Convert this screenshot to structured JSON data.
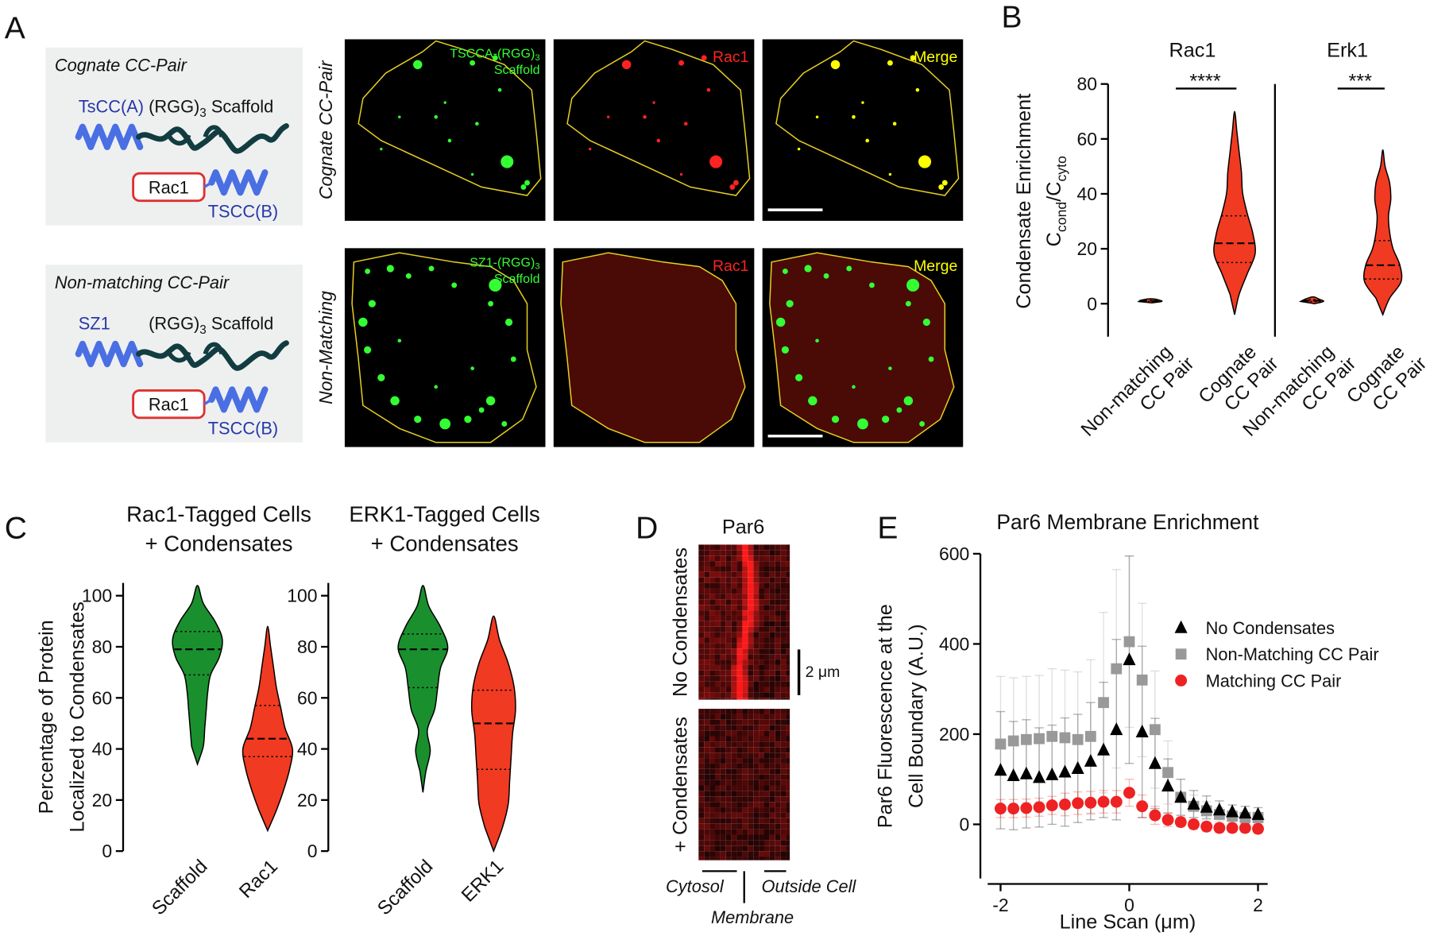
{
  "panel_labels": [
    "A",
    "B",
    "C",
    "D",
    "E"
  ],
  "panel_a": {
    "rows": [
      {
        "box_title": "Cognate CC-Pair",
        "coil": "TsCC(A)",
        "scaffold": [
          "(RGG)",
          "3",
          " Scaffold"
        ],
        "cargo": "Rac1",
        "cargo_coil": "TSCC(B)",
        "row_label": "Cognate CC-Pair",
        "channels": [
          {
            "label": [
              "TSCCA-(RGG)",
              "3"
            ],
            "label2": "Scaffold",
            "color": "#33ff33"
          },
          {
            "label": [
              "Rac1"
            ],
            "color": "#ff2222"
          },
          {
            "label": [
              "Merge"
            ],
            "color": "#ffff00"
          }
        ]
      },
      {
        "box_title": "Non-matching CC-Pair",
        "coil": "SZ1",
        "scaffold": [
          "(RGG)",
          "3",
          " Scaffold"
        ],
        "cargo": "Rac1",
        "cargo_coil": "TSCC(B)",
        "row_label": "Non-Matching",
        "channels": [
          {
            "label": [
              "SZ1-(RGG)",
              "3"
            ],
            "label2": "Scaffold",
            "color": "#33ff33"
          },
          {
            "label": [
              "Rac1"
            ],
            "color": "#ff2222"
          },
          {
            "label": [
              "Merge"
            ],
            "color": "#ffff00"
          }
        ]
      }
    ]
  },
  "panel_d": {
    "title": "Par6",
    "rows": [
      "No Condensates",
      "+ Condensates"
    ],
    "scale_bar": "2 μm",
    "left": "Cytosol",
    "right": "Outside Cell",
    "center": "Membrane"
  },
  "chart_data": [
    {
      "type": "violin",
      "title": [
        "Rac1"
      ],
      "ylabel": [
        "Condensate Enrichment"
      ],
      "ylabel_formula": [
        "C",
        "cond",
        "/C",
        "cyto"
      ],
      "categories": [
        [
          "Non-matching",
          "CC Pair"
        ],
        [
          "Cognate",
          "CC Pair"
        ]
      ],
      "violins": [
        {
          "color": "#f03a22",
          "min": 0.3,
          "max": 1.8,
          "q1": 0.8,
          "median": 1.0,
          "q3": 1.2,
          "density": [
            0.05,
            0.5,
            0.4,
            0.05
          ]
        },
        {
          "color": "#f03a22",
          "min": -4,
          "max": 70,
          "q1": 15,
          "median": 22,
          "q3": 32,
          "density": [
            0,
            0.2,
            0.55,
            0.9,
            0.8,
            0.55,
            0.35,
            0.3,
            0.2,
            0.1,
            0
          ]
        }
      ],
      "ylim": [
        -12,
        80
      ],
      "yticks": [
        0,
        20,
        40,
        60,
        80
      ],
      "significance": "****"
    },
    {
      "type": "violin",
      "title": [
        "Erk1"
      ],
      "categories": [
        [
          "Non-matching",
          "CC Pair"
        ],
        [
          "Cognate",
          "CC Pair"
        ]
      ],
      "violins": [
        {
          "color": "#f03a22",
          "min": 0,
          "max": 2.5,
          "q1": 0.8,
          "median": 1.1,
          "q3": 1.5,
          "density": [
            0.1,
            0.5,
            0.3,
            0.05
          ]
        },
        {
          "color": "#f03a22",
          "min": -4,
          "max": 56,
          "q1": 9,
          "median": 14,
          "q3": 23,
          "density": [
            0,
            0.3,
            0.8,
            0.75,
            0.45,
            0.3,
            0.25,
            0.35,
            0.3,
            0.1,
            0
          ]
        }
      ],
      "ylim": [
        -12,
        80
      ],
      "significance": "***"
    },
    {
      "type": "violin",
      "title": [
        "Rac1-Tagged Cells",
        "+ Condensates"
      ],
      "ylabel": [
        "Percentage of Protein",
        "Localized to Condensates"
      ],
      "categories": [
        "Scaffold",
        "Rac1"
      ],
      "violins": [
        {
          "color": "#1a8f2e",
          "min": 34,
          "max": 104,
          "q1": 69,
          "median": 79,
          "q3": 86,
          "density": [
            0,
            0.2,
            0.25,
            0.3,
            0.35,
            0.45,
            0.75,
            0.85,
            0.6,
            0.2,
            0
          ]
        },
        {
          "color": "#f03a22",
          "min": 8,
          "max": 88,
          "q1": 37,
          "median": 44,
          "q3": 57,
          "density": [
            0,
            0.3,
            0.55,
            0.75,
            0.85,
            0.6,
            0.45,
            0.3,
            0.2,
            0.1,
            0
          ]
        }
      ],
      "ylim": [
        0,
        105
      ],
      "yticks": [
        0,
        20,
        40,
        60,
        80,
        100
      ]
    },
    {
      "type": "violin",
      "title": [
        "ERK1-Tagged Cells",
        "+ Condensates"
      ],
      "categories": [
        "Scaffold",
        "ERK1"
      ],
      "violins": [
        {
          "color": "#1a8f2e",
          "min": 23,
          "max": 104,
          "q1": 64,
          "median": 79,
          "q3": 85,
          "density": [
            0,
            0.1,
            0.25,
            0.15,
            0.4,
            0.5,
            0.6,
            0.85,
            0.6,
            0.2,
            0
          ]
        },
        {
          "color": "#f03a22",
          "min": 0,
          "max": 92,
          "q1": 32,
          "median": 50,
          "q3": 63,
          "density": [
            0,
            0.3,
            0.5,
            0.55,
            0.6,
            0.65,
            0.75,
            0.7,
            0.5,
            0.2,
            0
          ]
        }
      ],
      "ylim": [
        0,
        105
      ],
      "yticks": [
        0,
        20,
        40,
        60,
        80,
        100
      ]
    },
    {
      "type": "scatter",
      "title": "Par6 Membrane Enrichment",
      "xlabel": "Line Scan (μm)",
      "ylabel": [
        "Par6 Fluorescence at the",
        "Cell Boundary (A.U.)"
      ],
      "x": [
        -2,
        -1.8,
        -1.6,
        -1.4,
        -1.2,
        -1,
        -0.8,
        -0.6,
        -0.4,
        -0.2,
        0,
        0.2,
        0.4,
        0.6,
        0.8,
        1,
        1.2,
        1.4,
        1.6,
        1.8,
        2
      ],
      "series": [
        {
          "name": "No Condensates",
          "color": "#000000",
          "marker": "triangle",
          "values": [
            120,
            108,
            112,
            104,
            110,
            116,
            124,
            140,
            165,
            210,
            365,
            205,
            135,
            85,
            60,
            45,
            38,
            32,
            28,
            25,
            22
          ],
          "errors": [
            130,
            120,
            120,
            110,
            110,
            120,
            120,
            130,
            150,
            200,
            230,
            190,
            100,
            60,
            40,
            30,
            25,
            20,
            15,
            15,
            15
          ]
        },
        {
          "name": "Non-Matching CC Pair",
          "color": "#999999",
          "marker": "square",
          "values": [
            178,
            185,
            188,
            190,
            195,
            192,
            188,
            195,
            270,
            345,
            405,
            320,
            210,
            115,
            60,
            40,
            30,
            22,
            18,
            15,
            15
          ],
          "errors": [
            150,
            140,
            140,
            140,
            150,
            150,
            150,
            170,
            200,
            220,
            190,
            170,
            130,
            70,
            40,
            25,
            20,
            15,
            12,
            12,
            12
          ]
        },
        {
          "name": "Matching CC Pair",
          "color": "#ee2222",
          "marker": "circle",
          "values": [
            35,
            35,
            36,
            38,
            42,
            44,
            47,
            48,
            50,
            50,
            70,
            40,
            20,
            10,
            5,
            0,
            -5,
            -8,
            -8,
            -8,
            -10
          ],
          "errors": [
            20,
            20,
            20,
            20,
            20,
            25,
            25,
            25,
            25,
            25,
            30,
            25,
            20,
            15,
            10,
            10,
            10,
            10,
            10,
            10,
            10
          ]
        }
      ],
      "xlim": [
        -2.2,
        2.15
      ],
      "ylim": [
        -120,
        600
      ],
      "xticks": [
        -2,
        0,
        2
      ],
      "yticks": [
        0,
        200,
        400,
        600
      ],
      "legend": "upper right"
    }
  ]
}
